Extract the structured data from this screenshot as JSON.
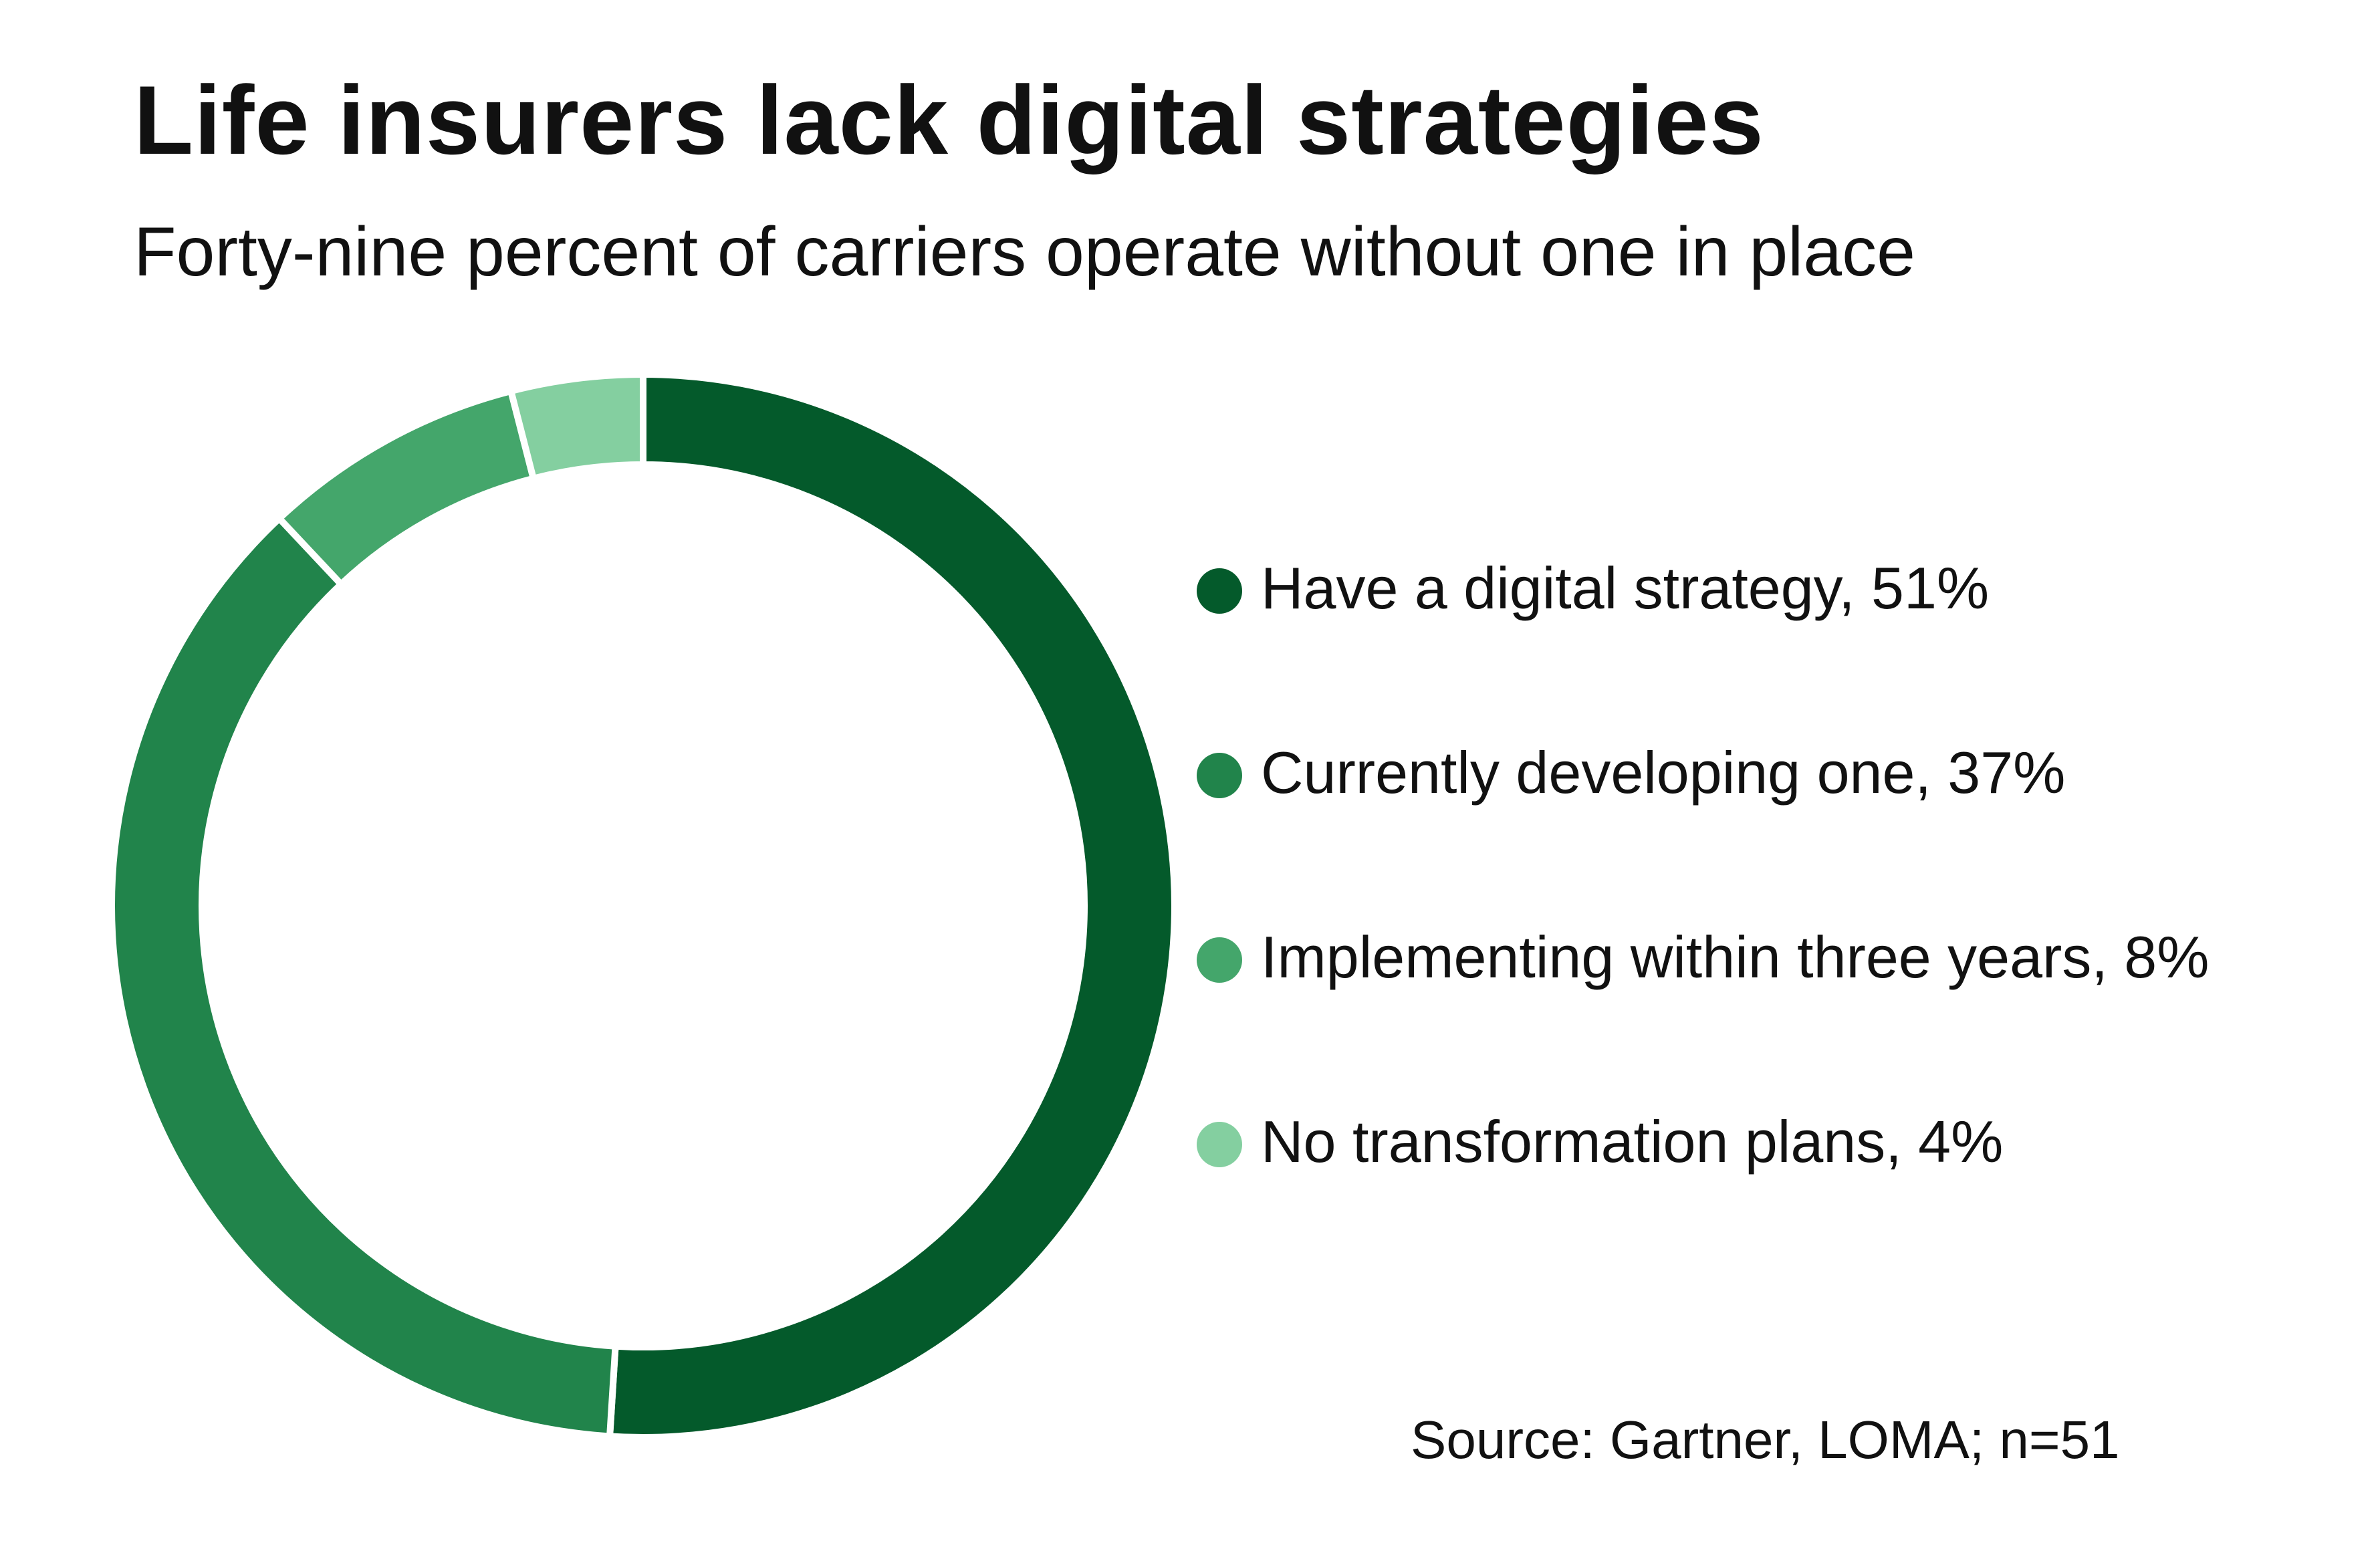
{
  "chart_data": {
    "type": "pie",
    "style": "donut",
    "title": "Life insurers lack digital strategies",
    "subtitle": "Forty-nine percent of carriers operate without one in place",
    "source": "Source: Gartner, LOMA; n=51",
    "legend_position": "right",
    "slices": [
      {
        "label": "Have a digital strategy, 51%",
        "value": 51,
        "color": "#045a2b"
      },
      {
        "label": "Currently developing one, 37%",
        "value": 37,
        "color": "#21844b"
      },
      {
        "label": "Implementing within three years, 8%",
        "value": 8,
        "color": "#44a66b"
      },
      {
        "label": "No transformation plans, 4%",
        "value": 4,
        "color": "#84cfa0"
      }
    ]
  }
}
